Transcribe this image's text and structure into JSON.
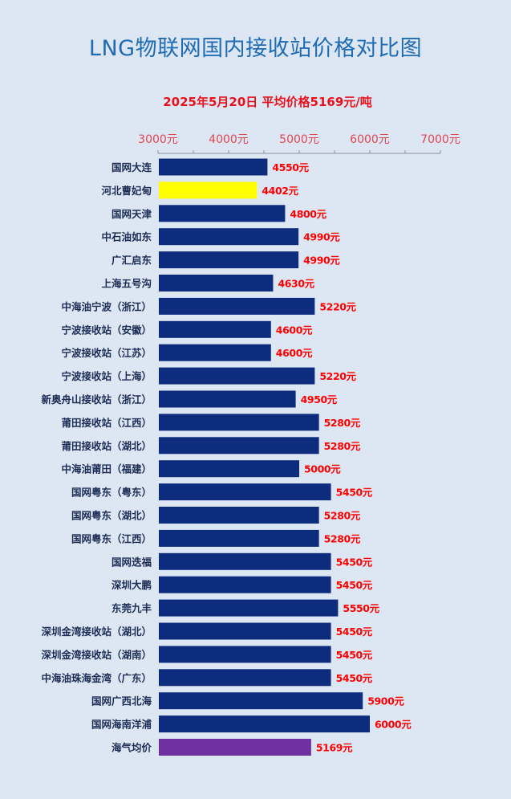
{
  "title": "LNG物联网国内接收站价格对比图",
  "subtitle": "2025年5月20日 平均价格5169元/吨",
  "colors": {
    "bar": "#0d2c7e",
    "highlight": "#ffff00",
    "average": "#7030a0",
    "value_label": "#ff0000",
    "tick_label": "#e1464e",
    "category_label": "#1c2c55",
    "title": "#1f6cb5",
    "subtitle": "#e8101b",
    "background": "#dde7f3"
  },
  "chart_data": {
    "type": "bar",
    "orientation": "horizontal",
    "xlim": [
      3000,
      7000
    ],
    "x_ticks": [
      3000,
      4000,
      5000,
      6000,
      7000
    ],
    "x_tick_labels": [
      "3000元",
      "4000元",
      "5000元",
      "6000元",
      "7000元"
    ],
    "grid": false,
    "legend": "none",
    "value_suffix": "元",
    "categories": [
      "国网大连",
      "河北曹妃甸",
      "国网天津",
      "中石油如东",
      "广汇启东",
      "上海五号沟",
      "中海油宁波（浙江）",
      "宁波接收站（安徽）",
      "宁波接收站（江苏）",
      "宁波接收站（上海）",
      "新奥舟山接收站（浙江）",
      "莆田接收站（江西）",
      "莆田接收站（湖北）",
      "中海油莆田（福建）",
      "国网粤东（粤东）",
      "国网粤东（湖北）",
      "国网粤东（江西）",
      "国网迭福",
      "深圳大鹏",
      "东莞九丰",
      "深圳金湾接收站（湖北）",
      "深圳金湾接收站（湖南）",
      "中海油珠海金湾（广东）",
      "国网广西北海",
      "国网海南洋浦",
      "海气均价"
    ],
    "values": [
      4550,
      4402,
      4800,
      4990,
      4990,
      4630,
      5220,
      4600,
      4600,
      5220,
      4950,
      5280,
      5280,
      5000,
      5450,
      5280,
      5280,
      5450,
      5450,
      5550,
      5450,
      5450,
      5450,
      5900,
      6000,
      5169
    ],
    "highlight_categories": {
      "河北曹妃甸": "highlight",
      "海气均价": "average"
    }
  }
}
